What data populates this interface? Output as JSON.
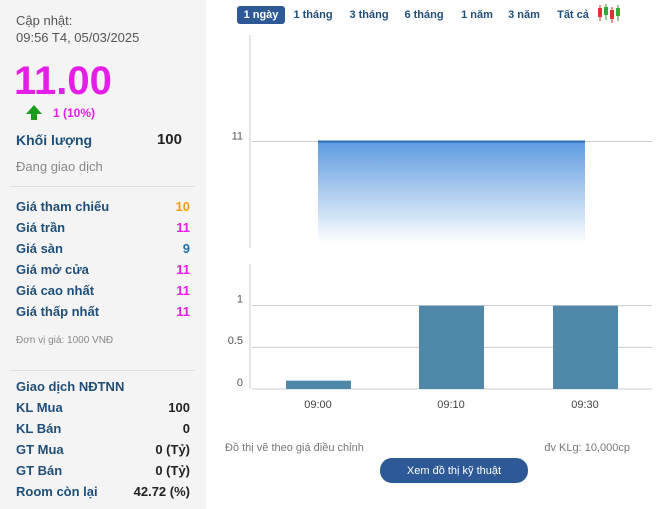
{
  "sidebar": {
    "update_label": "Cập nhật:",
    "update_time": "09:56 T4, 05/03/2025",
    "price": "11.00",
    "price_color": "#e51ee5",
    "change": "1 (10%)",
    "volume_label": "Khối lượng",
    "volume": 100,
    "status": "Đang giao dịch",
    "price_rows": [
      {
        "label": "Giá tham chiếu",
        "value": 10,
        "color": "#f39c12"
      },
      {
        "label": "Giá trần",
        "value": 11,
        "color": "#e51ee5"
      },
      {
        "label": "Giá sàn",
        "value": 9,
        "color": "#1f6fa8"
      },
      {
        "label": "Giá mở cửa",
        "value": 11,
        "color": "#e51ee5"
      },
      {
        "label": "Giá cao nhất",
        "value": 11,
        "color": "#e51ee5"
      },
      {
        "label": "Giá thấp nhất",
        "value": 11,
        "color": "#e51ee5"
      }
    ],
    "unit_note": "Đơn vị giá: 1000 VNĐ",
    "foreign_title": "Giao dịch NĐTNN",
    "foreign_rows": [
      {
        "label": "KL Mua",
        "value": 100
      },
      {
        "label": "KL Bán",
        "value": 0
      },
      {
        "label": "GT Mua",
        "value": "0 (Tỷ)"
      },
      {
        "label": "GT Bán",
        "value": "0 (Tỷ)"
      },
      {
        "label": "Room còn lại",
        "value": "42.72 (%)"
      }
    ]
  },
  "tabs": [
    "1 ngày",
    "1 tháng",
    "3 tháng",
    "6 tháng",
    "1 năm",
    "3 năm",
    "Tất cả"
  ],
  "active_tab": 0,
  "chart_data": [
    {
      "type": "area",
      "values": [
        11,
        11,
        11
      ],
      "color": "#2a6eb0",
      "ylim": [
        10.9,
        11.1
      ],
      "yticks": [
        11
      ],
      "grid": true
    },
    {
      "type": "bar",
      "categories": [
        "09:00",
        "09:10",
        "09:30"
      ],
      "values": [
        0.1,
        1,
        1
      ],
      "color": "#4f88a8",
      "ylim": [
        0,
        1.5
      ],
      "yticks": [
        0,
        0.5,
        1
      ],
      "grid": true
    }
  ],
  "footer": {
    "note": "Đồ thị vẽ theo giá điều chỉnh",
    "volume_unit": "đv KLg: 10,000cp",
    "button": "Xem đồ thị kỹ thuật"
  }
}
